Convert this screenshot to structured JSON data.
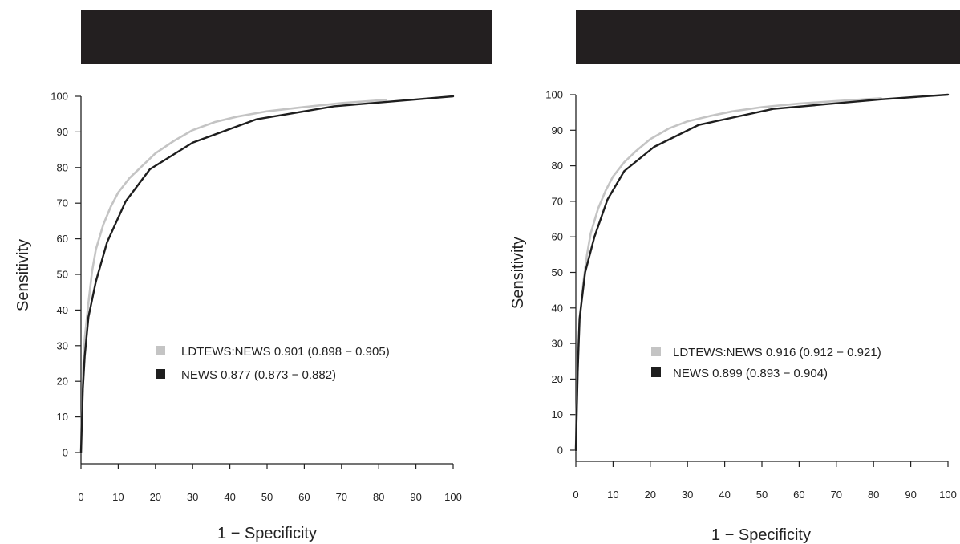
{
  "chart_data": [
    {
      "type": "line",
      "title": "",
      "xlabel": "1 − Specificity",
      "ylabel": "Sensitivity",
      "xlim": [
        0,
        100
      ],
      "ylim": [
        0,
        100
      ],
      "xticks": [
        0,
        10,
        20,
        30,
        40,
        50,
        60,
        70,
        80,
        90,
        100
      ],
      "yticks": [
        0,
        10,
        20,
        30,
        40,
        50,
        60,
        70,
        80,
        90,
        100
      ],
      "grid": false,
      "legend_position": "center-right",
      "series": [
        {
          "name": "LDTEWS:NEWS 0.901 (0.898 − 0.905)",
          "color": "#c4c4c4",
          "x": [
            0,
            0.5,
            1,
            2,
            3,
            4,
            6,
            8,
            10,
            13,
            16,
            20,
            25,
            30,
            36,
            42,
            50,
            60,
            70,
            82
          ],
          "y": [
            0,
            22,
            32,
            42,
            51,
            57,
            64,
            69,
            73,
            77,
            80,
            84,
            87.5,
            90.5,
            92.8,
            94.3,
            95.8,
            97,
            98.1,
            99
          ]
        },
        {
          "name": "NEWS 0.877 (0.873 − 0.882)",
          "color": "#1e1e1e",
          "x": [
            0,
            0.5,
            1,
            2,
            4,
            7,
            12,
            18.5,
            30,
            47,
            68,
            100
          ],
          "y": [
            0,
            18,
            27,
            38,
            48,
            59,
            70.5,
            79.5,
            87,
            93.5,
            97.2,
            100
          ]
        }
      ]
    },
    {
      "type": "line",
      "title": "",
      "xlabel": "1 − Specificity",
      "ylabel": "Sensitivity",
      "xlim": [
        0,
        100
      ],
      "ylim": [
        0,
        100
      ],
      "xticks": [
        0,
        10,
        20,
        30,
        40,
        50,
        60,
        70,
        80,
        90,
        100
      ],
      "yticks": [
        0,
        10,
        20,
        30,
        40,
        50,
        60,
        70,
        80,
        90,
        100
      ],
      "grid": false,
      "legend_position": "center-right",
      "series": [
        {
          "name": "LDTEWS:NEWS 0.916 (0.912 − 0.921)",
          "color": "#c4c4c4",
          "x": [
            0,
            0.5,
            1,
            2,
            3,
            4,
            6,
            8,
            10,
            13,
            16,
            20,
            25,
            30,
            36,
            42,
            50,
            60,
            70,
            82
          ],
          "y": [
            0,
            25,
            36,
            47,
            55,
            61,
            68,
            73,
            77,
            81,
            84,
            87.5,
            90.5,
            92.5,
            94,
            95.3,
            96.5,
            97.5,
            98.2,
            99
          ]
        },
        {
          "name": "NEWS 0.899 (0.893 − 0.904)",
          "color": "#1e1e1e",
          "x": [
            0,
            0.5,
            1,
            2.5,
            5,
            8.5,
            13,
            21,
            33,
            53,
            82,
            100
          ],
          "y": [
            0,
            22,
            37,
            50,
            60,
            70.5,
            78.5,
            85.3,
            91.5,
            96,
            98.7,
            100
          ]
        }
      ]
    }
  ]
}
